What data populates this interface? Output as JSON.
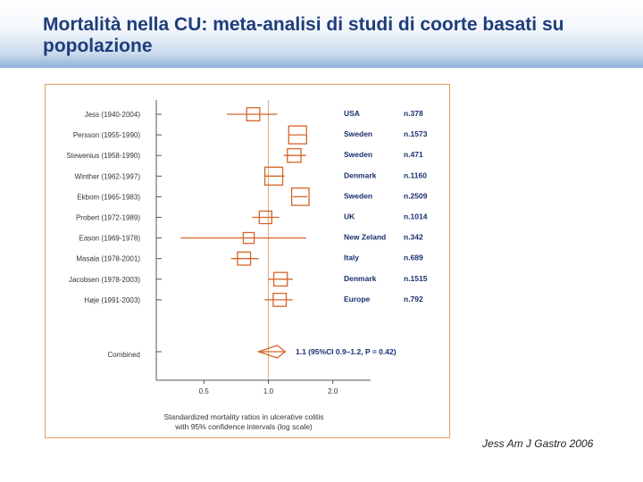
{
  "slide": {
    "title": "Mortalità nella CU: meta-analisi di studi di coorte basati su popolazione",
    "citation": "Jess Am J Gastro 2006"
  },
  "colors": {
    "title": "#1f3d7a",
    "marker": "#d4652a",
    "frame": "#e3a05a",
    "text": "#1a2f6e",
    "axis": "#555555",
    "reference_line": "#dcb48c"
  },
  "chart_data": {
    "type": "forest",
    "xscale": "log",
    "xlim": [
      0.3,
      3.0
    ],
    "xticks": [
      {
        "value": 0.5,
        "label": "0.5"
      },
      {
        "value": 1.0,
        "label": "1.0"
      },
      {
        "value": 2.0,
        "label": "2.0"
      }
    ],
    "reference_value": 1.0,
    "xlabel_lines": [
      "Standardized mortality ratios in ulcerative colitis",
      "with 95% confidence intervals (log scale)"
    ],
    "studies": [
      {
        "label": "Jess (1940-2004)",
        "country": "USA",
        "n": "n.378",
        "smr": 0.85,
        "ci": [
          0.64,
          1.1
        ],
        "weight": 0.55
      },
      {
        "label": "Persson (1955-1990)",
        "country": "Sweden",
        "n": "n.1573",
        "smr": 1.37,
        "ci": [
          1.25,
          1.5
        ],
        "weight": 1.0
      },
      {
        "label": "Stewenius (1958-1990)",
        "country": "Sweden",
        "n": "n.471",
        "smr": 1.32,
        "ci": [
          1.18,
          1.5
        ],
        "weight": 0.6
      },
      {
        "label": "Winther (1962-1997)",
        "country": "Denmark",
        "n": "n.1160",
        "smr": 1.06,
        "ci": [
          0.96,
          1.19
        ],
        "weight": 1.0
      },
      {
        "label": "Ekbom (1965-1983)",
        "country": "Sweden",
        "n": "n.2509",
        "smr": 1.41,
        "ci": [
          1.3,
          1.52
        ],
        "weight": 0.95
      },
      {
        "label": "Probert (1972-1989)",
        "country": "UK",
        "n": "n.1014",
        "smr": 0.97,
        "ci": [
          0.84,
          1.12
        ],
        "weight": 0.5
      },
      {
        "label": "Eason (1969-1978)",
        "country": "New Zeland",
        "n": "n.342",
        "smr": 0.81,
        "ci": [
          0.39,
          1.5
        ],
        "weight": 0.35
      },
      {
        "label": "Masala (1978-2001)",
        "country": "Italy",
        "n": "n.689",
        "smr": 0.77,
        "ci": [
          0.67,
          0.9
        ],
        "weight": 0.55
      },
      {
        "label": "Jacobsen (1978-2003)",
        "country": "Denmark",
        "n": "n.1515",
        "smr": 1.14,
        "ci": [
          1.0,
          1.3
        ],
        "weight": 0.6
      },
      {
        "label": "Høje (1991-2003)",
        "country": "Europe",
        "n": "n.792",
        "smr": 1.13,
        "ci": [
          0.96,
          1.3
        ],
        "weight": 0.55
      }
    ],
    "combined": {
      "label": "Combined",
      "smr": 1.1,
      "ci": [
        0.9,
        1.2
      ],
      "summary_text": "1.1 (95%CI 0.9–1.2, P = 0.42)"
    }
  }
}
